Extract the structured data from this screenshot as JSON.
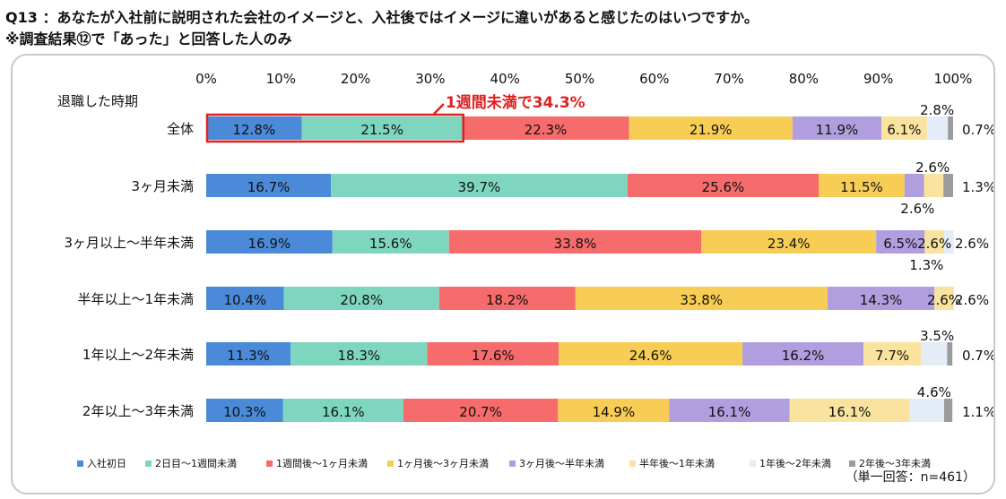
{
  "title_line1": "Q13 ：あなたが入社前に説明された会社のイメージと、入社後ではイメージに違いがあると感じたのはいつですか。",
  "title_line2": "※調査結果⑫で「あった」と回答した人のみ",
  "note": "（単一回答：n=461）",
  "callout": {
    "text": "1週間未満で34.3%",
    "color": "#e02020"
  },
  "chart_data": {
    "type": "bar",
    "orientation": "horizontal",
    "stacked": true,
    "row_header": "退職した時期",
    "categories": [
      "全体",
      "3ヶ月未満",
      "3ヶ月以上～半年未満",
      "半年以上～1年未満",
      "1年以上～2年未満",
      "2年以上～3年未満"
    ],
    "xlim": [
      0,
      100
    ],
    "x_ticks": [
      "0%",
      "10%",
      "20%",
      "30%",
      "40%",
      "50%",
      "60%",
      "70%",
      "80%",
      "90%",
      "100%"
    ],
    "legend_position": "bottom",
    "series": [
      {
        "name": "入社初日",
        "color": "#4a8ad8",
        "values": [
          12.8,
          16.7,
          16.9,
          10.4,
          11.3,
          10.3
        ],
        "labels": [
          "12.8%",
          "16.7%",
          "16.9%",
          "10.4%",
          "11.3%",
          "10.3%"
        ]
      },
      {
        "name": "2日目～1週間未満",
        "color": "#7fd6bf",
        "values": [
          21.5,
          39.7,
          15.6,
          20.8,
          18.3,
          16.1
        ],
        "labels": [
          "21.5%",
          "39.7%",
          "15.6%",
          "20.8%",
          "18.3%",
          "16.1%"
        ]
      },
      {
        "name": "1週間後～1ヶ月未満",
        "color": "#f66b6b",
        "values": [
          22.3,
          25.6,
          33.8,
          18.2,
          17.6,
          20.7
        ],
        "labels": [
          "22.3%",
          "25.6%",
          "33.8%",
          "18.2%",
          "17.6%",
          "20.7%"
        ]
      },
      {
        "name": "1ヶ月後～3ヶ月未満",
        "color": "#f7cd55",
        "values": [
          21.9,
          11.5,
          23.4,
          33.8,
          24.6,
          14.9
        ],
        "labels": [
          "21.9%",
          "11.5%",
          "23.4%",
          "33.8%",
          "24.6%",
          "14.9%"
        ]
      },
      {
        "name": "3ヶ月後～半年未満",
        "color": "#b09ede",
        "values": [
          11.9,
          2.6,
          6.5,
          14.3,
          16.2,
          16.1
        ],
        "labels": [
          "11.9%",
          "2.6%",
          "6.5%",
          "14.3%",
          "16.2%",
          "16.1%"
        ]
      },
      {
        "name": "半年後～1年未満",
        "color": "#f9e39e",
        "values": [
          6.1,
          2.6,
          2.6,
          2.6,
          7.7,
          16.1
        ],
        "labels": [
          "6.1%",
          "2.6%",
          "2.6%",
          "2.6%",
          "7.7%",
          "16.1%"
        ]
      },
      {
        "name": "1年後～2年未満",
        "color": "#e3ecf7",
        "values": [
          2.8,
          0,
          1.3,
          0,
          3.5,
          4.6
        ],
        "labels": [
          "2.8%",
          "",
          "1.3%",
          "",
          "3.5%",
          "4.6%"
        ]
      },
      {
        "name": "2年後～3年未満",
        "color": "#9b9b9b",
        "values": [
          0.7,
          1.3,
          0,
          0,
          0.7,
          1.1
        ],
        "labels": [
          "0.7%",
          "1.3%",
          "",
          "",
          "0.7%",
          "1.1%"
        ]
      }
    ]
  }
}
